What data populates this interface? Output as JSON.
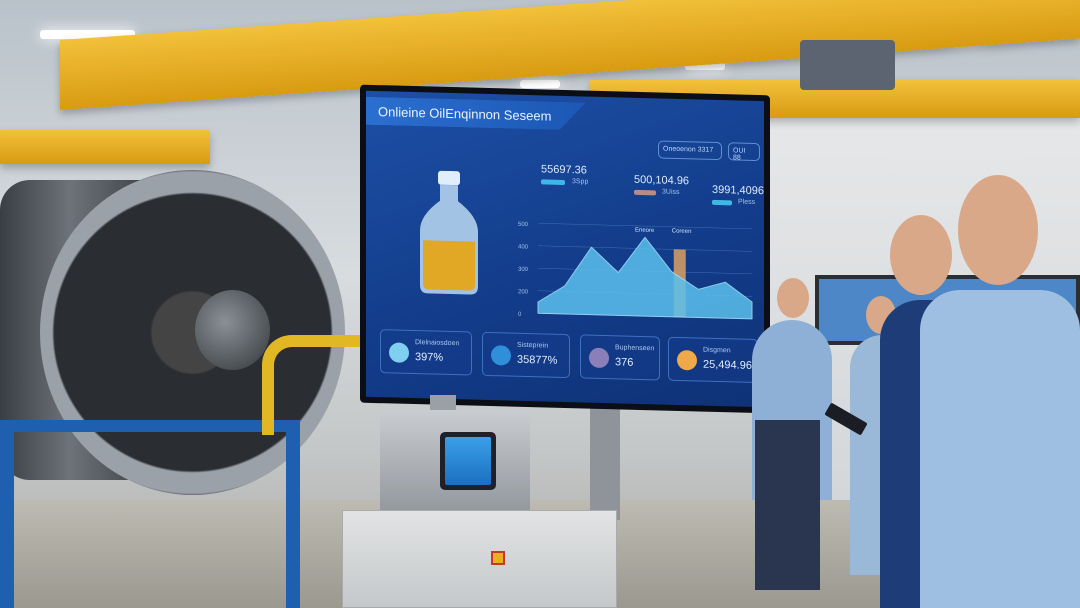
{
  "monitor": {
    "title": "Onlieine OilEnqinnon Seseem",
    "chips": [
      "Oneoenon 3317",
      "OUI 88"
    ],
    "metrics": [
      {
        "value": "55697.36",
        "label": "3Spp",
        "bar_color": "#3fb8e8"
      },
      {
        "value": "500,104.96",
        "label": "3Uiss",
        "bar_color": "#b98a8a"
      },
      {
        "value": "3991,4096",
        "label": "Pless",
        "bar_color": "#3fb8e8"
      }
    ],
    "chart_data": {
      "type": "area",
      "y_ticks": [
        "500",
        "400",
        "300",
        "200",
        "0"
      ],
      "annotations": [
        "Eneore",
        "Coreen"
      ],
      "values": [
        10,
        25,
        60,
        38,
        70,
        40,
        25,
        32,
        15
      ],
      "highlight_bar_color": "#e8a860",
      "area_color": "#5bc0ee"
    },
    "cards": [
      {
        "label": "Dlelnaiosdoen",
        "value": "397%",
        "icon": "gauge-icon",
        "color": "#7fd0f0"
      },
      {
        "label": "Sisteprein",
        "value": "35877%",
        "icon": "drop-icon",
        "color": "#2f8fd8"
      },
      {
        "label": "Buphenseen",
        "value": "376",
        "icon": "flask-icon",
        "color": "#8a7fb8"
      },
      {
        "label": "Disgmen",
        "value": "25,494.96",
        "icon": "check-icon",
        "color": "#f0a848"
      }
    ]
  },
  "colors": {
    "crane": "#f2c13a",
    "stand": "#1f5fb0",
    "screen": "#1d4fa6"
  }
}
